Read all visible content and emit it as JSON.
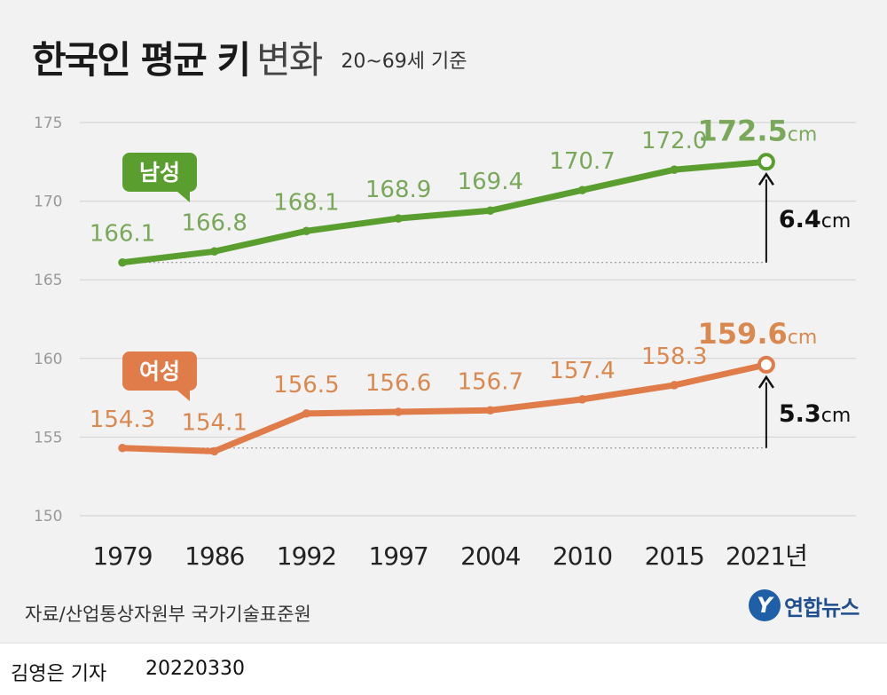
{
  "header": {
    "title_bold": "한국인 평균 키",
    "title_light": "변화",
    "subtitle": "20~69세 기준"
  },
  "source": "자료/산업통상자원부 국가기술표준원",
  "logo": {
    "mark": "Y",
    "text": "연합뉴스"
  },
  "footer": {
    "reporter": "김영은 기자",
    "date": "20220330"
  },
  "colors": {
    "male": "#5a9e2f",
    "male_label": "#7aa85a",
    "female": "#e07b4a",
    "female_label": "#d9884f",
    "grid": "#cfcfcf",
    "axis_tick": "#999999"
  },
  "chart_data": {
    "type": "line",
    "categories": [
      "1979",
      "1986",
      "1992",
      "1997",
      "2004",
      "2010",
      "2015",
      "2021"
    ],
    "x_tick_labels": [
      "1979",
      "1986",
      "1992",
      "1997",
      "2004",
      "2010",
      "2015",
      "2021년"
    ],
    "y_ticks": [
      "150",
      "155",
      "160",
      "165",
      "170",
      "175"
    ],
    "ylim": [
      150,
      175
    ],
    "grid": true,
    "series": [
      {
        "name": "남성",
        "values": [
          166.1,
          166.8,
          168.1,
          168.9,
          169.4,
          170.7,
          172.0,
          172.5
        ],
        "labels": [
          "166.1",
          "166.8",
          "168.1",
          "168.9",
          "169.4",
          "170.7",
          "172.0",
          "172.5"
        ],
        "unit": "cm",
        "change": "6.4"
      },
      {
        "name": "여성",
        "values": [
          154.3,
          154.1,
          156.5,
          156.6,
          156.7,
          157.4,
          158.3,
          159.6
        ],
        "labels": [
          "154.3",
          "154.1",
          "156.5",
          "156.6",
          "156.7",
          "157.4",
          "158.3",
          "159.6"
        ],
        "unit": "cm",
        "change": "5.3"
      }
    ]
  }
}
